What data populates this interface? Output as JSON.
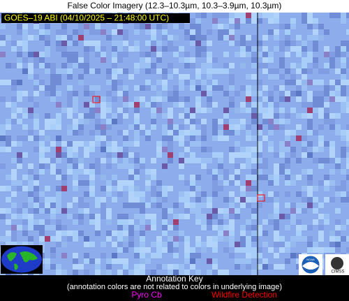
{
  "header": {
    "title": "False Color Imagery (12.3–10.3µm, 10.3–3.9µm, 10.3µm)"
  },
  "image": {
    "timestamp_label": "GOES–19 ABI (04/10/2025 – 21:48:00 UTC)"
  },
  "annotation_key": {
    "title": "Annotation Key",
    "note": "(annotation colors are not related to colors in underlying image)",
    "items": [
      {
        "label": "Pyro Cb",
        "color": "#ff00ff"
      },
      {
        "label": "Wildfire Detection",
        "color": "#ff0000"
      }
    ]
  },
  "logos": {
    "noaa": "NOAA",
    "cimss": "CIMSS"
  }
}
